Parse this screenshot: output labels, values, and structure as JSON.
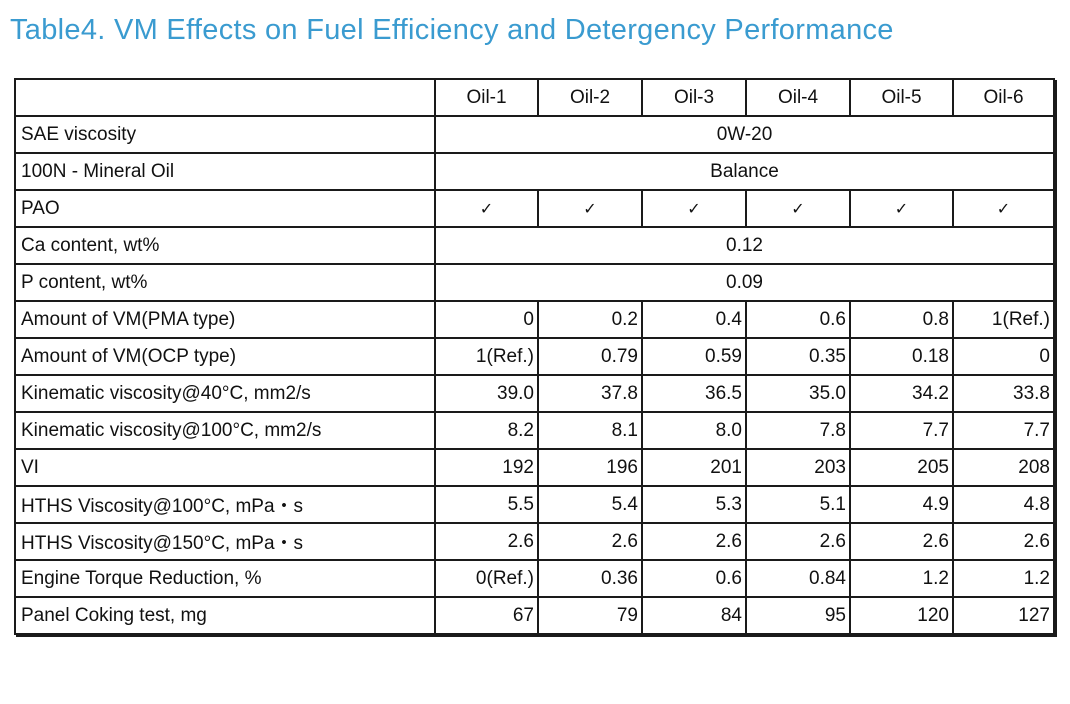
{
  "title": "Table4. VM Effects on Fuel Efficiency and Detergency Performance",
  "columns": [
    "Oil-1",
    "Oil-2",
    "Oil-3",
    "Oil-4",
    "Oil-5",
    "Oil-6"
  ],
  "rows": [
    {
      "label": "SAE viscosity",
      "span": "0W-20"
    },
    {
      "label": "100N - Mineral Oil",
      "span": "Balance"
    },
    {
      "label": "PAO",
      "values": [
        "✓",
        "✓",
        "✓",
        "✓",
        "✓",
        "✓"
      ],
      "kind": "check"
    },
    {
      "label": "Ca content, wt%",
      "span": "0.12"
    },
    {
      "label": "P content, wt%",
      "span": "0.09"
    },
    {
      "label": "Amount of VM(PMA type)",
      "values": [
        "0",
        "0.2",
        "0.4",
        "0.6",
        "0.8",
        "1(Ref.)"
      ]
    },
    {
      "label": "Amount of VM(OCP type)",
      "values": [
        "1(Ref.)",
        "0.79",
        "0.59",
        "0.35",
        "0.18",
        "0"
      ]
    },
    {
      "label": "Kinematic viscosity@40°C, mm2/s",
      "values": [
        "39.0",
        "37.8",
        "36.5",
        "35.0",
        "34.2",
        "33.8"
      ]
    },
    {
      "label": "Kinematic viscosity@100°C, mm2/s",
      "values": [
        "8.2",
        "8.1",
        "8.0",
        "7.8",
        "7.7",
        "7.7"
      ]
    },
    {
      "label": "VI",
      "values": [
        "192",
        "196",
        "201",
        "203",
        "205",
        "208"
      ]
    },
    {
      "label": "HTHS Viscosity@100°C, mPa・s",
      "values": [
        "5.5",
        "5.4",
        "5.3",
        "5.1",
        "4.9",
        "4.8"
      ]
    },
    {
      "label": "HTHS Viscosity@150°C, mPa・s",
      "values": [
        "2.6",
        "2.6",
        "2.6",
        "2.6",
        "2.6",
        "2.6"
      ]
    },
    {
      "label": "Engine Torque Reduction, %",
      "values": [
        "0(Ref.)",
        "0.36",
        "0.6",
        "0.84",
        "1.2",
        "1.2"
      ]
    },
    {
      "label": "Panel Coking test, mg",
      "values": [
        "67",
        "79",
        "84",
        "95",
        "120",
        "127"
      ]
    }
  ]
}
